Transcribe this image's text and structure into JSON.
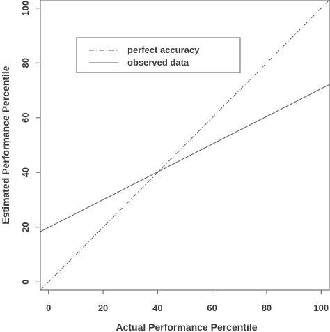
{
  "chart_data": {
    "type": "line",
    "xlabel": "Actual Performance Percentile",
    "ylabel": "Estimated Performance Percentile",
    "xlim": [
      -3,
      103
    ],
    "ylim": [
      -3,
      103
    ],
    "x_ticks": [
      0,
      20,
      40,
      60,
      80,
      100
    ],
    "y_ticks": [
      0,
      20,
      40,
      60,
      80,
      100
    ],
    "grid": false,
    "legend_position": "top-left",
    "series": [
      {
        "name": "perfect accuracy",
        "line_style": "dash-dot",
        "color": "#555555",
        "x": [
          -3,
          103
        ],
        "y": [
          -3,
          103
        ]
      },
      {
        "name": "observed data",
        "line_style": "solid",
        "color": "#555555",
        "x": [
          -3,
          103
        ],
        "y": [
          18.4,
          72.1
        ]
      }
    ]
  }
}
